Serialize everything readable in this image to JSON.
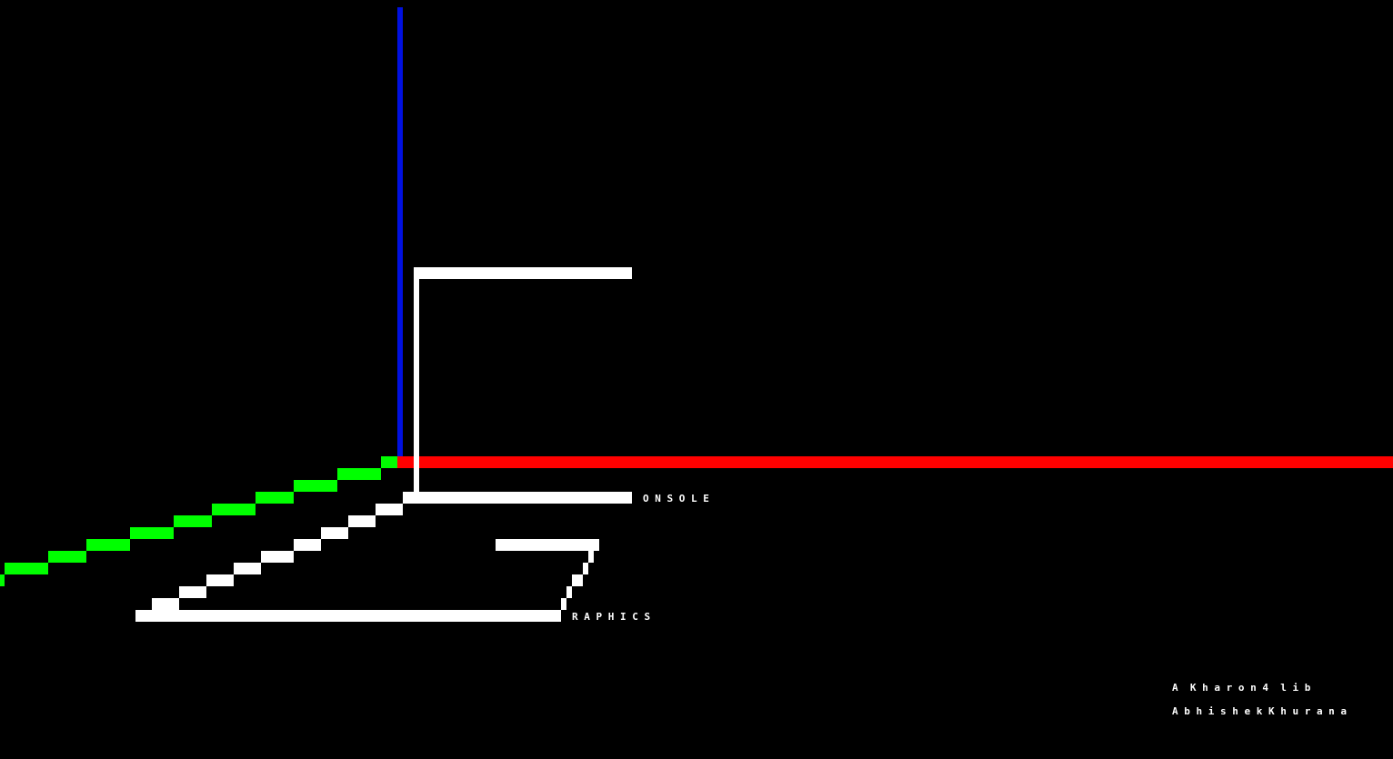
{
  "scene": {
    "background": "#000000",
    "colors": {
      "z_axis": "#0010e0",
      "x_axis": "#ff0000",
      "y_axis": "#00ff00",
      "glyphs": "#ffffff"
    }
  },
  "labels": {
    "console_text": "O N S O L E",
    "graphics_text": "R A P H I C S"
  },
  "credits": {
    "line1": "A  K h a r o n 4  l i b",
    "line2": "A b h i s h e k K h u r a n a"
  }
}
